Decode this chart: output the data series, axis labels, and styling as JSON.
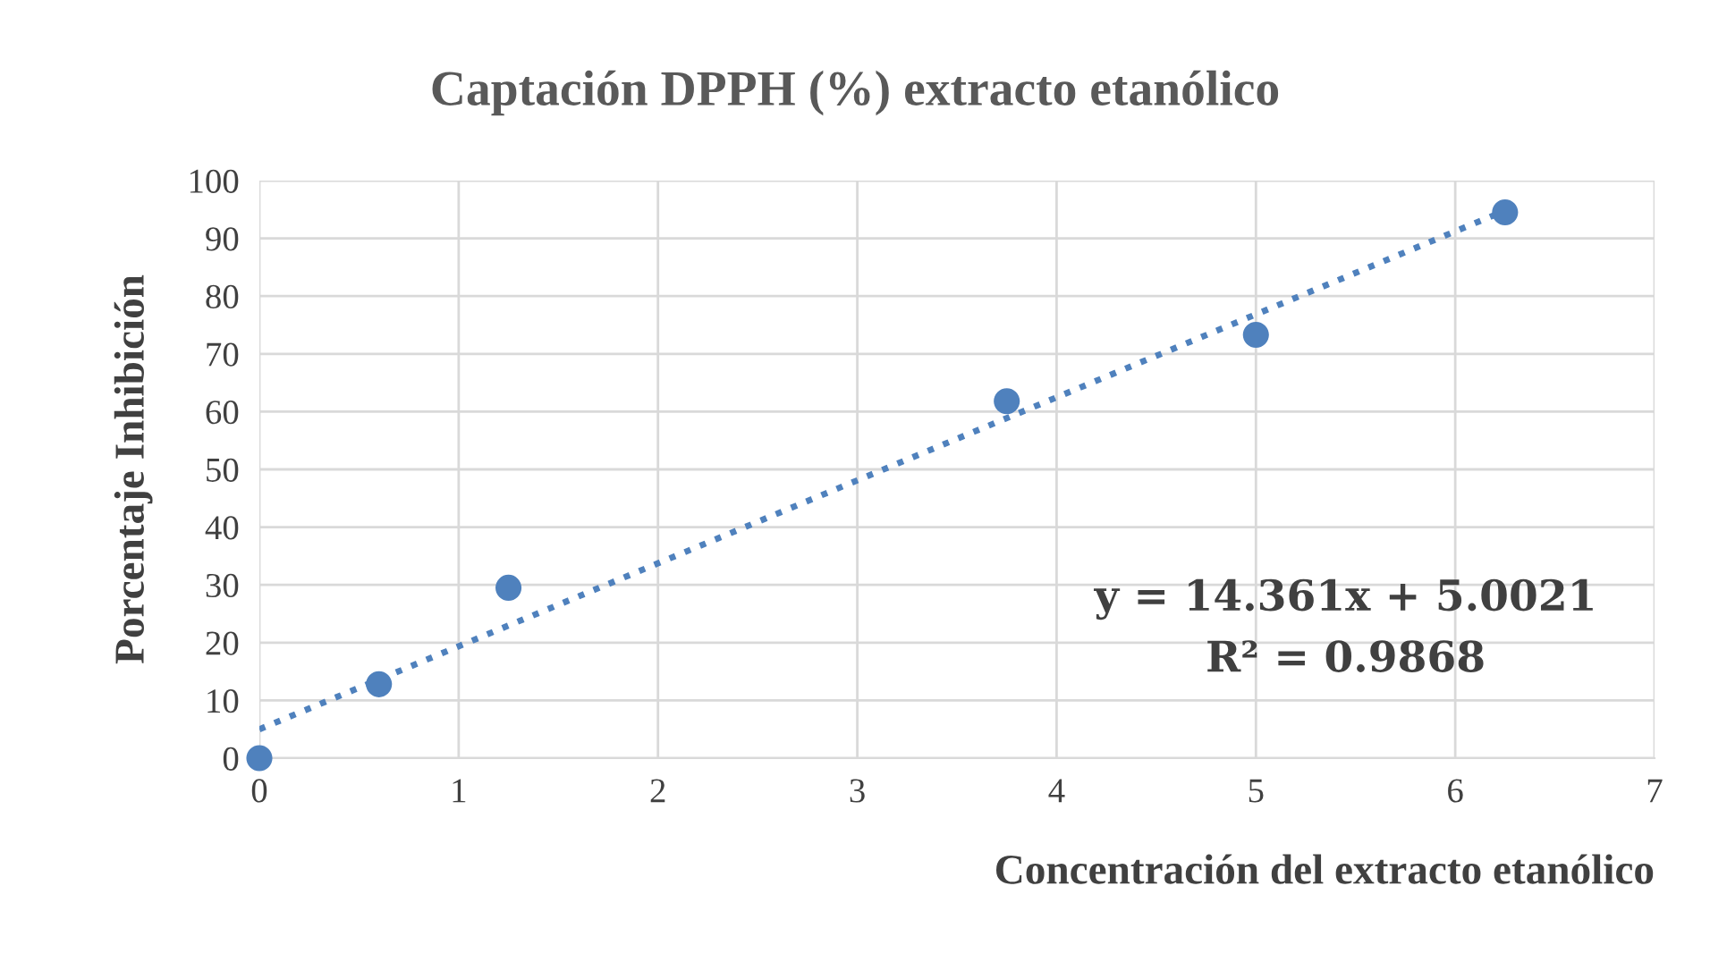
{
  "chart_data": {
    "type": "scatter",
    "title": "Captación DPPH (%) extracto etanólico",
    "xlabel": "Concentración del extracto etanólico",
    "ylabel": "Porcentaje Inhibición",
    "x": [
      0,
      0.6,
      1.25,
      3.75,
      5,
      6.25
    ],
    "series": [
      {
        "color": "#4f81bd",
        "values": [
          0,
          12.8,
          29.5,
          61.8,
          73.3,
          94.5
        ],
        "marker": "circle"
      },
      {
        "type": "line",
        "color": "#4f81bd",
        "x": [
          0,
          6.25
        ],
        "values": [
          5.0,
          94.8
        ],
        "line_style": "dotted",
        "marker": "none"
      }
    ],
    "annotations": [
      "y = 14.361x + 5.0021",
      "R² = 0.9868"
    ],
    "xlim": [
      0,
      7
    ],
    "xticks": [
      0,
      1,
      2,
      3,
      4,
      5,
      6,
      7
    ],
    "ylim": [
      0,
      100
    ],
    "yticks": [
      0,
      10,
      20,
      30,
      40,
      50,
      60,
      70,
      80,
      90,
      100
    ],
    "grid": true,
    "legend": false
  }
}
